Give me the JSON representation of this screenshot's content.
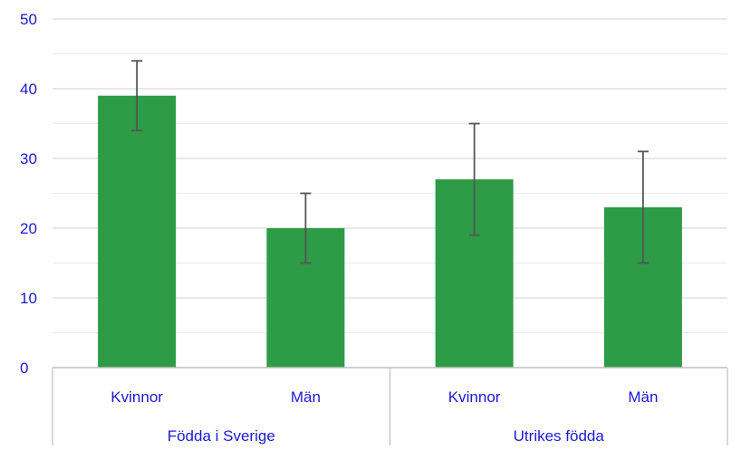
{
  "chart_data": {
    "type": "bar",
    "title": "",
    "xlabel": "",
    "ylabel": "",
    "ylim": [
      0,
      50
    ],
    "yticks": [
      0,
      10,
      20,
      30,
      40,
      50
    ],
    "minor_gridlines": true,
    "grid": true,
    "legend": "none",
    "groups": [
      {
        "label": "Födda i Sverige",
        "bars": [
          {
            "label": "Kvinnor",
            "value": 39,
            "error_low": 34,
            "error_high": 44
          },
          {
            "label": "Män",
            "value": 20,
            "error_low": 15,
            "error_high": 25
          }
        ]
      },
      {
        "label": "Utrikes födda",
        "bars": [
          {
            "label": "Kvinnor",
            "value": 27,
            "error_low": 19,
            "error_high": 35
          },
          {
            "label": "Män",
            "value": 23,
            "error_low": 15,
            "error_high": 31
          }
        ]
      }
    ],
    "colors": {
      "bar": "#2e9b46",
      "error_bar": "#555555",
      "text": "#1a1ad6",
      "gridline": "#d9d9d9",
      "axis": "#bfbfbf"
    }
  }
}
